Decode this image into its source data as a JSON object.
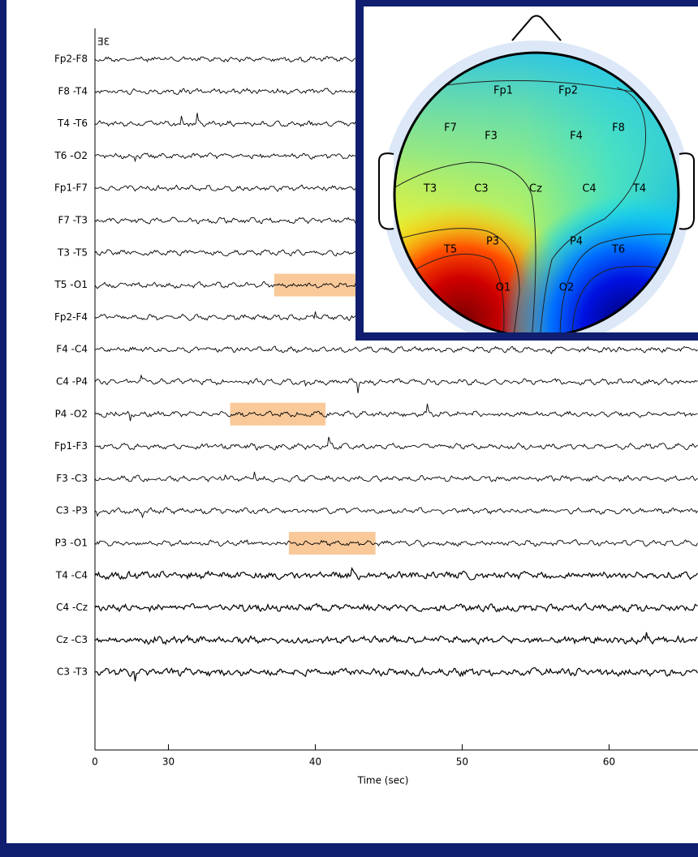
{
  "chart_data": {
    "type": "eeg",
    "x_label": "Time (sec)",
    "scale_label": "ƎƐ",
    "axis_start_label": "0",
    "xlim": [
      25,
      66
    ],
    "xticks": [
      30,
      40,
      50,
      60
    ],
    "channels": [
      "Fp2-F8",
      "F8 -T4",
      "T4 -T6",
      "T6 -O2",
      "Fp1-F7",
      "F7 -T3",
      "T3 -T5",
      "T5 -O1",
      "Fp2-F4",
      "F4 -C4",
      "C4 -P4",
      "P4 -O2",
      "Fp1-F3",
      "F3 -C3",
      "C3 -P3",
      "P3 -O1",
      "T4 -C4",
      "C4 -Cz",
      "Cz -C3",
      "C3 -T3"
    ],
    "trace_color": "#000000",
    "highlight_color": "#f9c99a",
    "highlights": [
      {
        "channel": "T5 -O1",
        "start": 37.2,
        "end": 43
      },
      {
        "channel": "P4 -O2",
        "start": 34.2,
        "end": 40.7
      },
      {
        "channel": "P3 -O1",
        "start": 38.2,
        "end": 44.1
      }
    ]
  },
  "topomap": {
    "electrodes": [
      "Fp1",
      "Fp2",
      "F7",
      "F3",
      "F4",
      "F8",
      "T3",
      "C3",
      "Cz",
      "C4",
      "T4",
      "T5",
      "P3",
      "P4",
      "T6",
      "O1",
      "O2"
    ]
  }
}
